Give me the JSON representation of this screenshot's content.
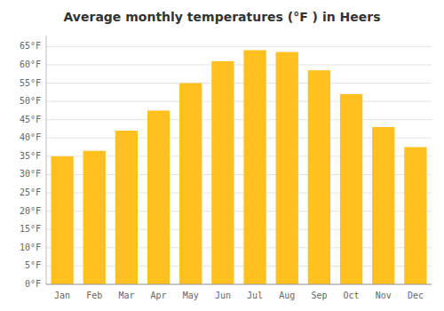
{
  "chart_data": {
    "type": "bar",
    "title": "Average monthly temperatures (°F ) in Heers",
    "categories": [
      "Jan",
      "Feb",
      "Mar",
      "Apr",
      "May",
      "Jun",
      "Jul",
      "Aug",
      "Sep",
      "Oct",
      "Nov",
      "Dec"
    ],
    "values": [
      35.0,
      36.5,
      42.0,
      47.5,
      55.0,
      61.0,
      64.0,
      63.5,
      58.5,
      52.0,
      43.0,
      37.5
    ],
    "color": "#FFC020",
    "ylim": [
      0,
      68
    ],
    "yticks": [
      {
        "value": 0,
        "label": "0°F"
      },
      {
        "value": 5,
        "label": "5°F"
      },
      {
        "value": 10,
        "label": "10°F"
      },
      {
        "value": 15,
        "label": "15°F"
      },
      {
        "value": 20,
        "label": "20°F"
      },
      {
        "value": 25,
        "label": "25°F"
      },
      {
        "value": 30,
        "label": "30°F"
      },
      {
        "value": 35,
        "label": "35°F"
      },
      {
        "value": 40,
        "label": "40°F"
      },
      {
        "value": 45,
        "label": "45°F"
      },
      {
        "value": 50,
        "label": "50°F"
      },
      {
        "value": 55,
        "label": "55°F"
      },
      {
        "value": 60,
        "label": "60°F"
      },
      {
        "value": 65,
        "label": "65°F"
      }
    ],
    "grid": true
  }
}
